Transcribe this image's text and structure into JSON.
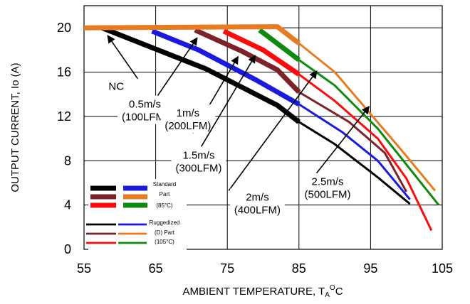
{
  "chart_data": {
    "type": "line",
    "xlabel_main": "AMBIENT TEMPERATURE, T",
    "xlabel_sub": "A",
    "xlabel_sup": "O",
    "xlabel_end": "C",
    "ylabel": "OUTPUT CURRENT, Io  (A)",
    "xlim": [
      55,
      105
    ],
    "ylim": [
      0,
      22
    ],
    "xticks": [
      "55",
      "65",
      "75",
      "85",
      "95",
      "105"
    ],
    "yticks": [
      "0",
      "4",
      "8",
      "12",
      "16",
      "20"
    ],
    "grid": true,
    "colors": {
      "black": "#000000",
      "blue": "#1a1adf",
      "brown": "#7b2328",
      "red": "#ff0a0a",
      "green": "#0e8a0e",
      "orange": "#e67c1f"
    },
    "series": [
      {
        "key": "nc_std",
        "color": "black",
        "style": "thick",
        "x": [
          57.5,
          72,
          82,
          85
        ],
        "y": [
          20,
          16.3,
          13,
          11.5
        ]
      },
      {
        "key": "nc_rug",
        "color": "black",
        "style": "thin",
        "x": [
          85,
          90,
          96,
          100.5
        ],
        "y": [
          11.5,
          9.5,
          6.5,
          4.1
        ]
      },
      {
        "key": "v05_std",
        "color": "blue",
        "style": "thick",
        "x": [
          64.5,
          71,
          79,
          85
        ],
        "y": [
          19.7,
          18,
          15.3,
          13.1
        ]
      },
      {
        "key": "v05_rug",
        "color": "blue",
        "style": "thin",
        "x": [
          85,
          91,
          96,
          100.5
        ],
        "y": [
          13.1,
          10.6,
          8,
          4.5
        ]
      },
      {
        "key": "v1_std",
        "color": "brown",
        "style": "thick",
        "x": [
          70.5,
          77,
          82,
          85
        ],
        "y": [
          19.8,
          17.9,
          16.2,
          14.2
        ]
      },
      {
        "key": "v1_rug",
        "color": "brown",
        "style": "thin",
        "x": [
          85,
          92,
          97,
          100
        ],
        "y": [
          14.2,
          11.5,
          8.7,
          5.2
        ]
      },
      {
        "key": "v15_std",
        "color": "red",
        "style": "thick",
        "x": [
          74.5,
          80,
          85
        ],
        "y": [
          19.7,
          18,
          15.8
        ]
      },
      {
        "key": "v15_rug",
        "color": "red",
        "style": "thin",
        "x": [
          85,
          90,
          96,
          100,
          103.5
        ],
        "y": [
          15.8,
          13.4,
          10,
          6.4,
          1.7
        ]
      },
      {
        "key": "v2_std",
        "color": "green",
        "style": "thick",
        "x": [
          79.5,
          85
        ],
        "y": [
          19.8,
          17.1
        ]
      },
      {
        "key": "v2_rug",
        "color": "green",
        "style": "thin",
        "x": [
          85,
          90,
          96,
          104.5
        ],
        "y": [
          17.1,
          14.8,
          10.9,
          4
        ]
      },
      {
        "key": "v25_std",
        "color": "orange",
        "style": "thick",
        "x": [
          55,
          82,
          85
        ],
        "y": [
          20,
          20.1,
          18.6
        ]
      },
      {
        "key": "v25_rug",
        "color": "orange",
        "style": "thin",
        "x": [
          85,
          90,
          99,
          104
        ],
        "y": [
          18.6,
          16,
          9.2,
          5.3
        ]
      }
    ],
    "annotations": [
      {
        "key": "nc",
        "lines": [
          "NC"
        ],
        "text_at": [
          59.5,
          14.8
        ],
        "arrow_from": [
          62.5,
          15.4
        ],
        "arrow_to": [
          58.3,
          19.3
        ]
      },
      {
        "key": "a05",
        "lines": [
          "0.5m/s",
          "(100LFM)"
        ],
        "text_at": [
          63.5,
          12.6
        ],
        "arrow_from": [
          65.2,
          13.8
        ],
        "arrow_to": [
          70.8,
          19.1
        ]
      },
      {
        "key": "a1",
        "lines": [
          "1m/s",
          "(200LFM)"
        ],
        "text_at": [
          69.5,
          11.8
        ],
        "arrow_from": [
          70.2,
          10.5
        ],
        "arrow_to": [
          76.5,
          17.4
        ]
      },
      {
        "key": "a15",
        "lines": [
          "1.5m/s",
          "(300LFM)"
        ],
        "text_at": [
          71,
          8
        ],
        "arrow_from": [
          71.3,
          9.2
        ],
        "arrow_to": [
          78.9,
          17.5
        ]
      },
      {
        "key": "a2",
        "lines": [
          "2m/s",
          "(400LFM)"
        ],
        "text_at": [
          79.2,
          4.2
        ],
        "arrow_from": [
          75.2,
          5.3
        ],
        "arrow_to": [
          87.5,
          16.1
        ]
      },
      {
        "key": "a25",
        "lines": [
          "2.5m/s",
          "(500LFM)"
        ],
        "text_at": [
          89,
          5.6
        ],
        "arrow_from": [
          87,
          6.5
        ],
        "arrow_to": [
          94.8,
          12.9
        ]
      }
    ],
    "legend": {
      "placement": "bottom-left",
      "std_label_lines": [
        "Standard",
        "Part",
        "(85°C)"
      ],
      "rug_label_lines": [
        "Ruggedized",
        "(D) Part",
        "(105°C)"
      ],
      "std_rows": [
        [
          "black",
          "blue"
        ],
        [
          "brown",
          "orange"
        ],
        [
          "red",
          "green"
        ]
      ],
      "rug_rows": [
        [
          "black",
          "blue"
        ],
        [
          "brown",
          "orange"
        ],
        [
          "red",
          "green"
        ]
      ]
    }
  }
}
